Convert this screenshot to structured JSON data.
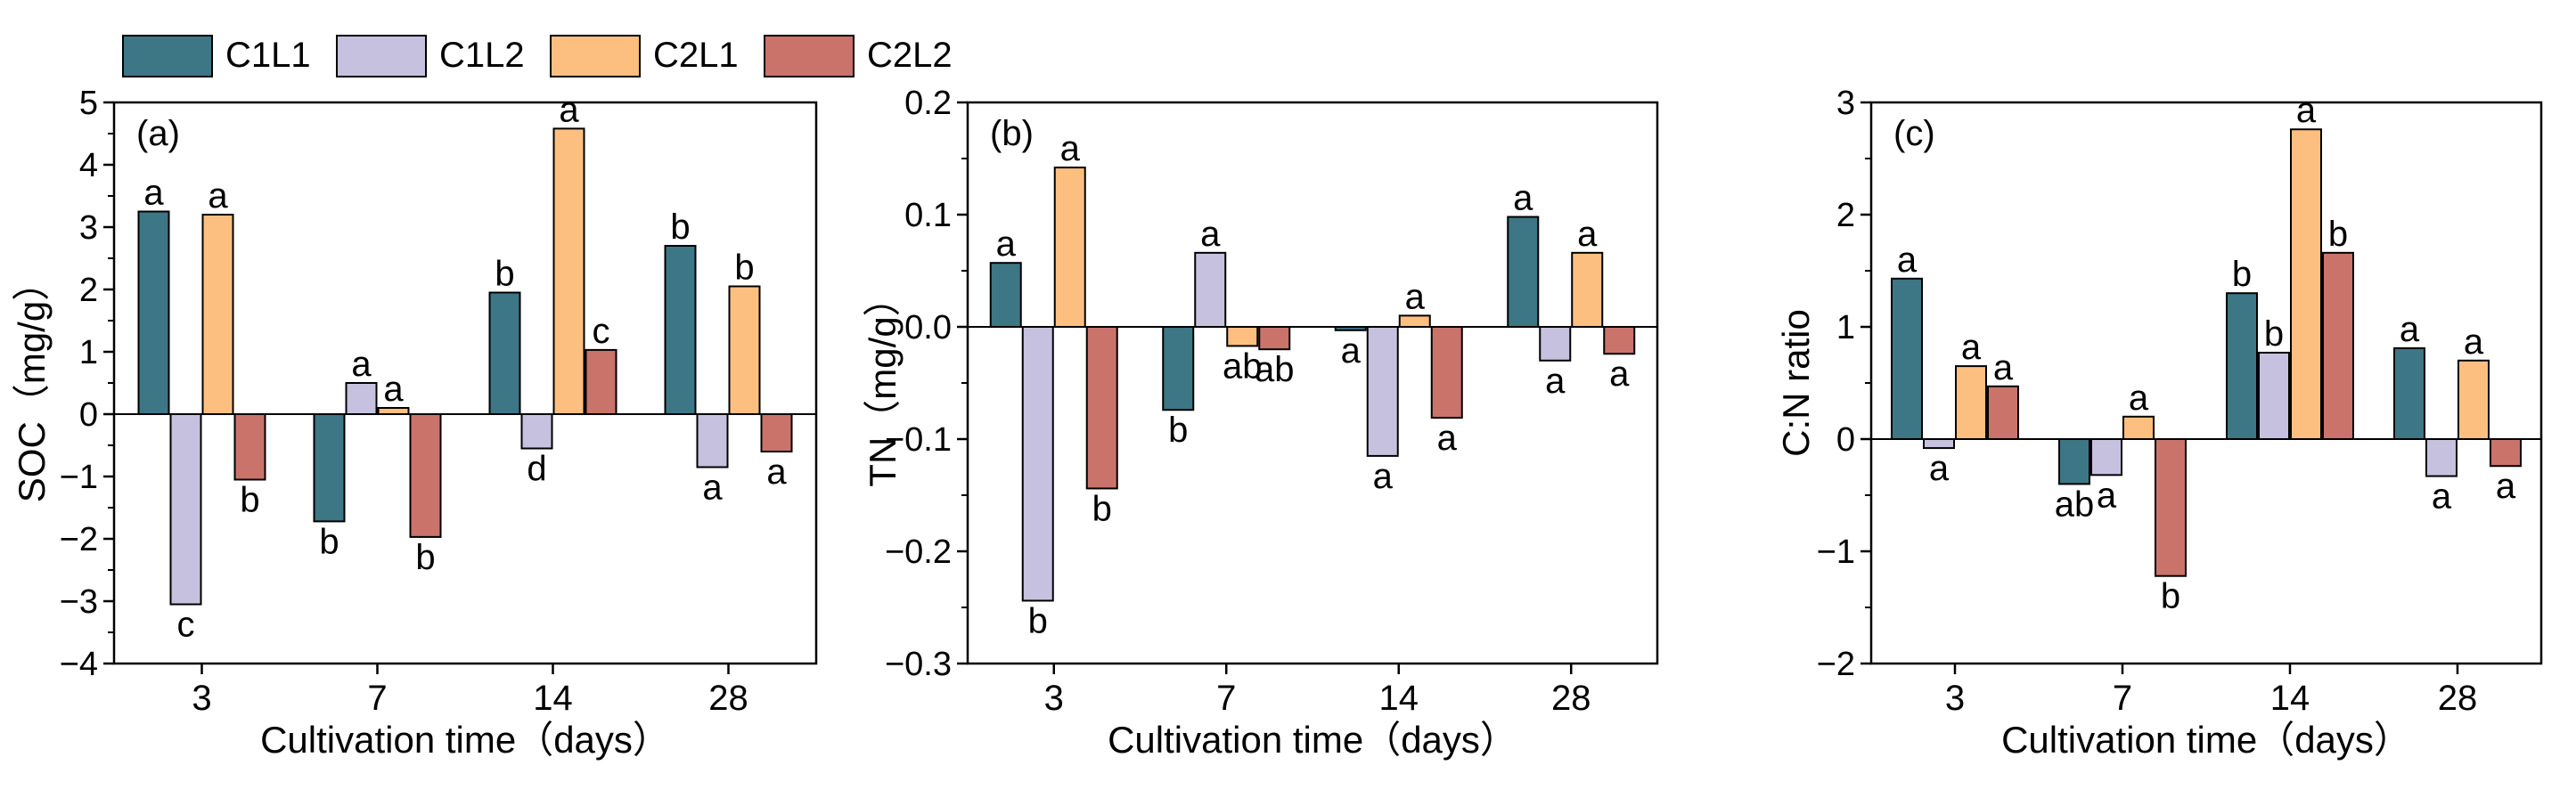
{
  "legend": {
    "items": [
      {
        "label": "C1L1",
        "color": "#3d7685"
      },
      {
        "label": "C1L2",
        "color": "#c7c1e0"
      },
      {
        "label": "C2L1",
        "color": "#fcbf80"
      },
      {
        "label": "C2L2",
        "color": "#c9736b"
      }
    ]
  },
  "chart_data": [
    {
      "type": "bar",
      "panel_label": "(a)",
      "xlabel": "Cultivation time（days）",
      "ylabel": "SOC（mg/g）",
      "categories": [
        "3",
        "7",
        "14",
        "28"
      ],
      "ylim": [
        -4,
        5
      ],
      "yticks": [
        5,
        4,
        3,
        2,
        1,
        0,
        -1,
        -2,
        -3,
        -4
      ],
      "series": [
        {
          "name": "C1L1",
          "values": [
            3.25,
            -1.72,
            1.95,
            2.7
          ],
          "labels": [
            "a",
            "b",
            "b",
            "b"
          ]
        },
        {
          "name": "C1L2",
          "values": [
            -3.05,
            0.5,
            -0.55,
            -0.85
          ],
          "labels": [
            "c",
            "a",
            "d",
            "a"
          ]
        },
        {
          "name": "C2L1",
          "values": [
            3.2,
            0.1,
            4.58,
            2.05
          ],
          "labels": [
            "a",
            "a",
            "a",
            "b"
          ]
        },
        {
          "name": "C2L2",
          "values": [
            -1.05,
            -1.97,
            1.03,
            -0.6
          ],
          "labels": [
            "b",
            "b",
            "c",
            "a"
          ]
        }
      ]
    },
    {
      "type": "bar",
      "panel_label": "(b)",
      "xlabel": "Cultivation time（days）",
      "ylabel": "TN（mg/g）",
      "categories": [
        "3",
        "7",
        "14",
        "28"
      ],
      "ylim": [
        -0.3,
        0.2
      ],
      "yticks": [
        "0.2",
        "0.1",
        "0.0",
        "-0.1",
        "-0.2",
        "-0.3"
      ],
      "series": [
        {
          "name": "C1L1",
          "values": [
            0.057,
            -0.074,
            -0.003,
            0.098
          ],
          "labels": [
            "a",
            "b",
            "a",
            "a"
          ]
        },
        {
          "name": "C1L2",
          "values": [
            -0.244,
            0.066,
            -0.115,
            -0.03
          ],
          "labels": [
            "b",
            "a",
            "a",
            "a"
          ]
        },
        {
          "name": "C2L1",
          "values": [
            0.142,
            -0.017,
            0.01,
            0.066
          ],
          "labels": [
            "a",
            "ab",
            "a",
            "a"
          ]
        },
        {
          "name": "C2L2",
          "values": [
            -0.144,
            -0.02,
            -0.081,
            -0.024
          ],
          "labels": [
            "b",
            "ab",
            "a",
            "a"
          ]
        }
      ]
    },
    {
      "type": "bar",
      "panel_label": "(c)",
      "xlabel": "Cultivation time（days）",
      "ylabel": "C:N ratio",
      "categories": [
        "3",
        "7",
        "14",
        "28"
      ],
      "ylim": [
        -2,
        3
      ],
      "yticks": [
        3,
        2,
        1,
        0,
        -1,
        -2
      ],
      "series": [
        {
          "name": "C1L1",
          "values": [
            1.43,
            -0.4,
            1.3,
            0.81
          ],
          "labels": [
            "a",
            "ab",
            "b",
            "a"
          ]
        },
        {
          "name": "C1L2",
          "values": [
            -0.08,
            -0.32,
            0.77,
            -0.33
          ],
          "labels": [
            "a",
            "a",
            "b",
            "a"
          ]
        },
        {
          "name": "C2L1",
          "values": [
            0.65,
            0.2,
            2.76,
            0.7
          ],
          "labels": [
            "a",
            "a",
            "a",
            "a"
          ]
        },
        {
          "name": "C2L2",
          "values": [
            0.47,
            -1.22,
            1.66,
            -0.24
          ],
          "labels": [
            "a",
            "b",
            "b",
            "a"
          ]
        }
      ]
    }
  ]
}
